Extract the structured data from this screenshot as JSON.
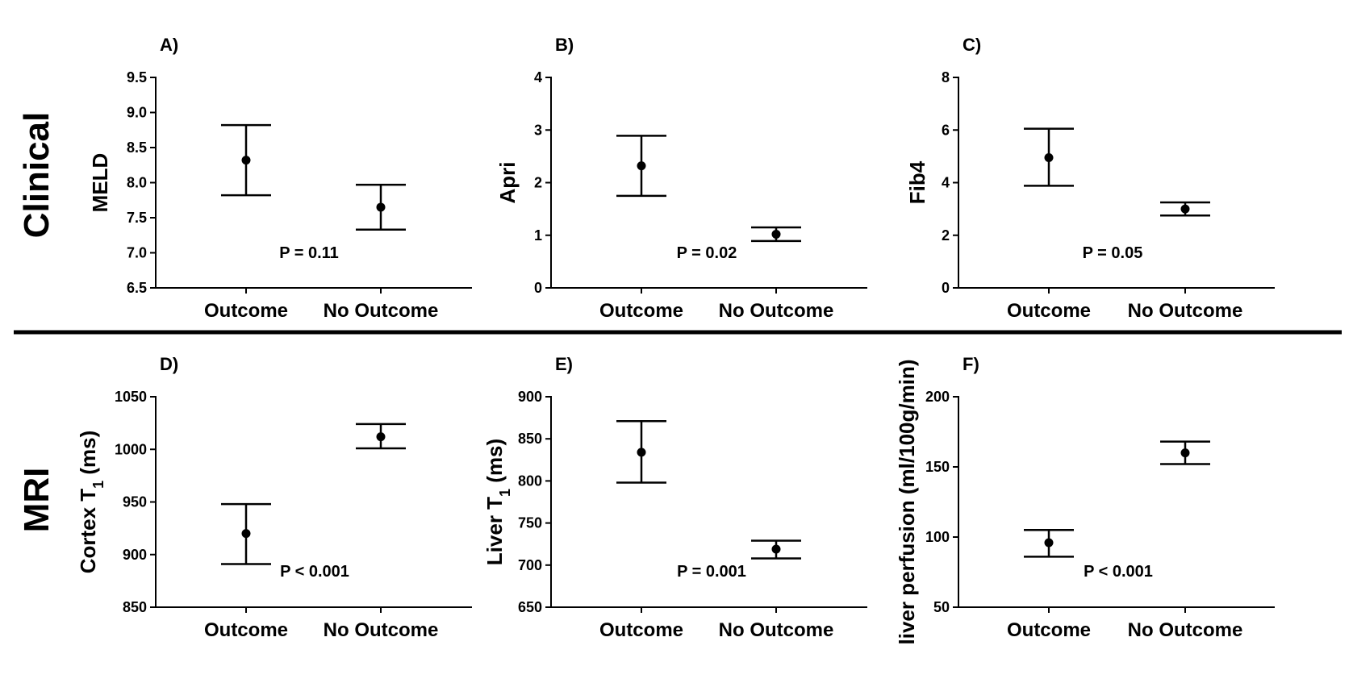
{
  "rows": [
    {
      "label": "Clinical"
    },
    {
      "label": "MRI"
    }
  ],
  "chart_data": [
    {
      "type": "scatter",
      "panel": "A)",
      "ylabel": "MELD",
      "ylim": [
        6.5,
        9.5
      ],
      "yticks": [
        6.5,
        7.0,
        7.5,
        8.0,
        8.5,
        9.0,
        9.5
      ],
      "ytick_labels": [
        "6.5",
        "7.0",
        "7.5",
        "8.0",
        "8.5",
        "9.0",
        "9.5"
      ],
      "categories": [
        "Outcome",
        "No Outcome"
      ],
      "values": [
        8.32,
        7.65
      ],
      "err_low": [
        7.82,
        7.33
      ],
      "err_high": [
        8.82,
        7.97
      ],
      "annotation": "P = 0.11"
    },
    {
      "type": "scatter",
      "panel": "B)",
      "ylabel": "Apri",
      "ylim": [
        0,
        4
      ],
      "yticks": [
        0,
        1,
        2,
        3,
        4
      ],
      "ytick_labels": [
        "0",
        "1",
        "2",
        "3",
        "4"
      ],
      "categories": [
        "Outcome",
        "No Outcome"
      ],
      "values": [
        2.32,
        1.02
      ],
      "err_low": [
        1.75,
        0.89
      ],
      "err_high": [
        2.89,
        1.15
      ],
      "annotation": "P = 0.02"
    },
    {
      "type": "scatter",
      "panel": "C)",
      "ylabel": "Fib4",
      "ylim": [
        0,
        8
      ],
      "yticks": [
        0,
        2,
        4,
        6,
        8
      ],
      "ytick_labels": [
        "0",
        "2",
        "4",
        "6",
        "8"
      ],
      "categories": [
        "Outcome",
        "No Outcome"
      ],
      "values": [
        4.95,
        3.0
      ],
      "err_low": [
        3.88,
        2.75
      ],
      "err_high": [
        6.05,
        3.25
      ],
      "annotation": "P = 0.05"
    },
    {
      "type": "scatter",
      "panel": "D)",
      "ylabel": "Cortex T",
      "ylabel_sub": "1",
      "ylabel_suffix": " (ms)",
      "ylim": [
        850,
        1050
      ],
      "yticks": [
        850,
        900,
        950,
        1000,
        1050
      ],
      "ytick_labels": [
        "850",
        "900",
        "950",
        "1000",
        "1050"
      ],
      "categories": [
        "Outcome",
        "No Outcome"
      ],
      "values": [
        920,
        1012
      ],
      "err_low": [
        891,
        1001
      ],
      "err_high": [
        948,
        1024
      ],
      "annotation": "P < 0.001"
    },
    {
      "type": "scatter",
      "panel": "E)",
      "ylabel": "Liver T",
      "ylabel_sub": "1",
      "ylabel_suffix": " (ms)",
      "ylim": [
        650,
        900
      ],
      "yticks": [
        650,
        700,
        750,
        800,
        850,
        900
      ],
      "ytick_labels": [
        "650",
        "700",
        "750",
        "800",
        "850",
        "900"
      ],
      "categories": [
        "Outcome",
        "No Outcome"
      ],
      "values": [
        834,
        719
      ],
      "err_low": [
        798,
        708
      ],
      "err_high": [
        871,
        729
      ],
      "annotation": "P = 0.001"
    },
    {
      "type": "scatter",
      "panel": "F)",
      "ylabel": "liver perfusion (ml/100g/min)",
      "ylim": [
        50,
        200
      ],
      "yticks": [
        50,
        100,
        150,
        200
      ],
      "ytick_labels": [
        "50",
        "100",
        "150",
        "200"
      ],
      "categories": [
        "Outcome",
        "No Outcome"
      ],
      "values": [
        96,
        160
      ],
      "err_low": [
        86,
        152
      ],
      "err_high": [
        105,
        168
      ],
      "annotation": "P < 0.001"
    }
  ]
}
